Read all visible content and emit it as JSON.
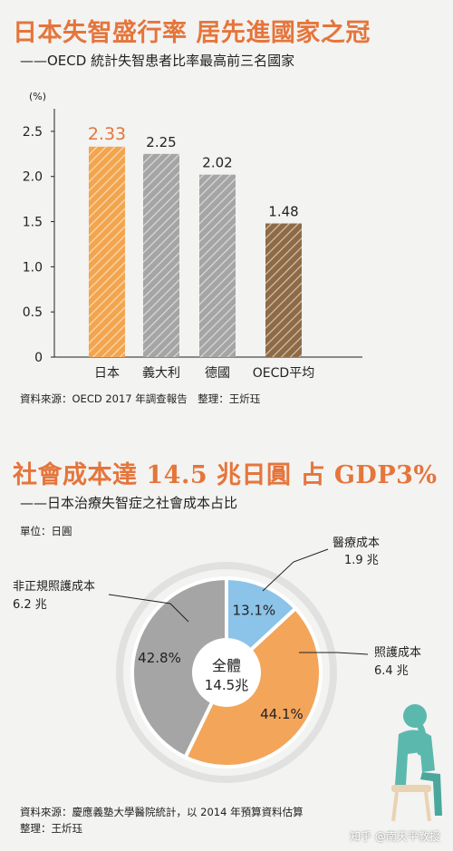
{
  "chart_data": [
    {
      "type": "bar",
      "title": "日本失智盛行率 居先進國家之冠",
      "subtitle": "——OECD 統計失智患者比率最高前三名國家",
      "unit_label": "(%)",
      "categories": [
        "日本",
        "義大利",
        "德國",
        "OECD平均"
      ],
      "values": [
        2.33,
        2.25,
        2.02,
        1.48
      ],
      "value_labels": [
        "2.33",
        "2.25",
        "2.02",
        "1.48"
      ],
      "yticks": [
        "0",
        "0.5",
        "1.0",
        "1.5",
        "2.0",
        "2.5"
      ],
      "ylim": [
        0,
        2.75
      ],
      "grid": false,
      "colors": [
        "#f3a54e",
        "#a5a5a5",
        "#a5a5a5",
        "#8e6a45"
      ],
      "highlight_label_color": "#e5753b",
      "source": "資料來源：OECD 2017 年調查報告　整理：王炘珏"
    },
    {
      "type": "pie",
      "title": "社會成本達 14.5 兆日圓 占 GDP3%",
      "subtitle": "——日本治療失智症之社會成本占比",
      "unit": "單位：日圓",
      "center_label": [
        "全體",
        "14.5兆"
      ],
      "slices": [
        {
          "name": "醫療成本",
          "value": 1.9,
          "amount": "1.9 兆",
          "percent": "13.1%",
          "share": 13.1,
          "color": "#8cc3e8"
        },
        {
          "name": "照護成本",
          "value": 6.4,
          "amount": "6.4 兆",
          "percent": "44.1%",
          "share": 44.1,
          "color": "#f3a55a"
        },
        {
          "name": "非正規照護成本",
          "value": 6.2,
          "amount": "6.2 兆",
          "percent": "42.8%",
          "share": 42.8,
          "color": "#a5a5a5"
        }
      ],
      "source_line1": "資料來源：慶應義塾大學醫院統計，以 2014 年預算資料估算",
      "source_line2": "整理：王炘珏"
    }
  ],
  "watermark": "知乎 @南天平教授"
}
